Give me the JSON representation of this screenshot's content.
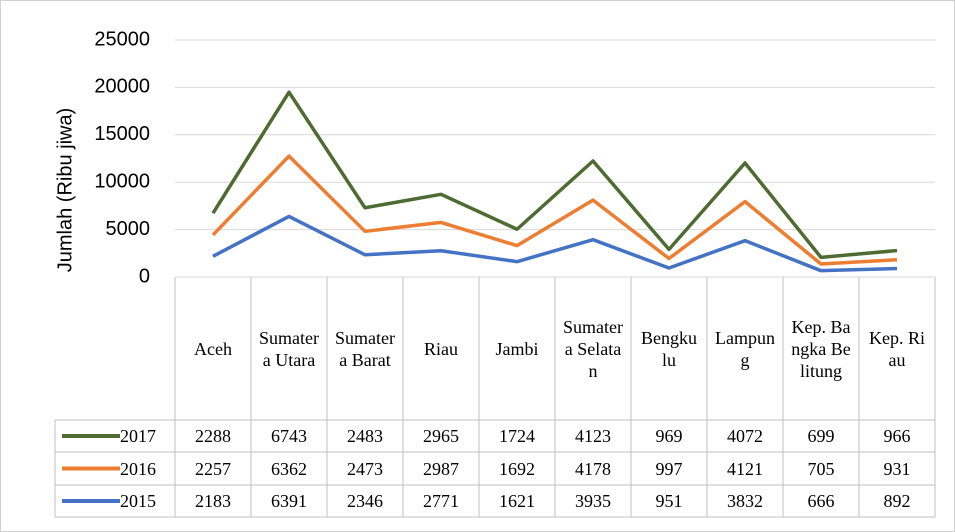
{
  "chart_data": {
    "type": "line",
    "stacked": true,
    "y_label": "Jumlah (Ribu jiwa)",
    "categories": [
      "Aceh",
      "Sumatera Utara",
      "Sumatera Barat",
      "Riau",
      "Jambi",
      "Sumatera Selatan",
      "Bengkulu",
      "Lampung",
      "Kep. Bangka Belitung",
      "Kep. Riau"
    ],
    "series": [
      {
        "name": "2017",
        "color": "#4e6b31",
        "values": [
          2288,
          6743,
          2483,
          2965,
          1724,
          4123,
          969,
          4072,
          699,
          966
        ]
      },
      {
        "name": "2016",
        "color": "#ed7d31",
        "values": [
          2257,
          6362,
          2473,
          2987,
          1692,
          4178,
          997,
          4121,
          705,
          931
        ]
      },
      {
        "name": "2015",
        "color": "#4472c4",
        "values": [
          2183,
          6391,
          2346,
          2771,
          1621,
          3935,
          951,
          3832,
          666,
          892
        ]
      }
    ],
    "ylim": [
      0,
      25000
    ],
    "yticks": [
      0,
      5000,
      10000,
      15000,
      20000,
      25000
    ],
    "grid": true,
    "data_table": true
  }
}
